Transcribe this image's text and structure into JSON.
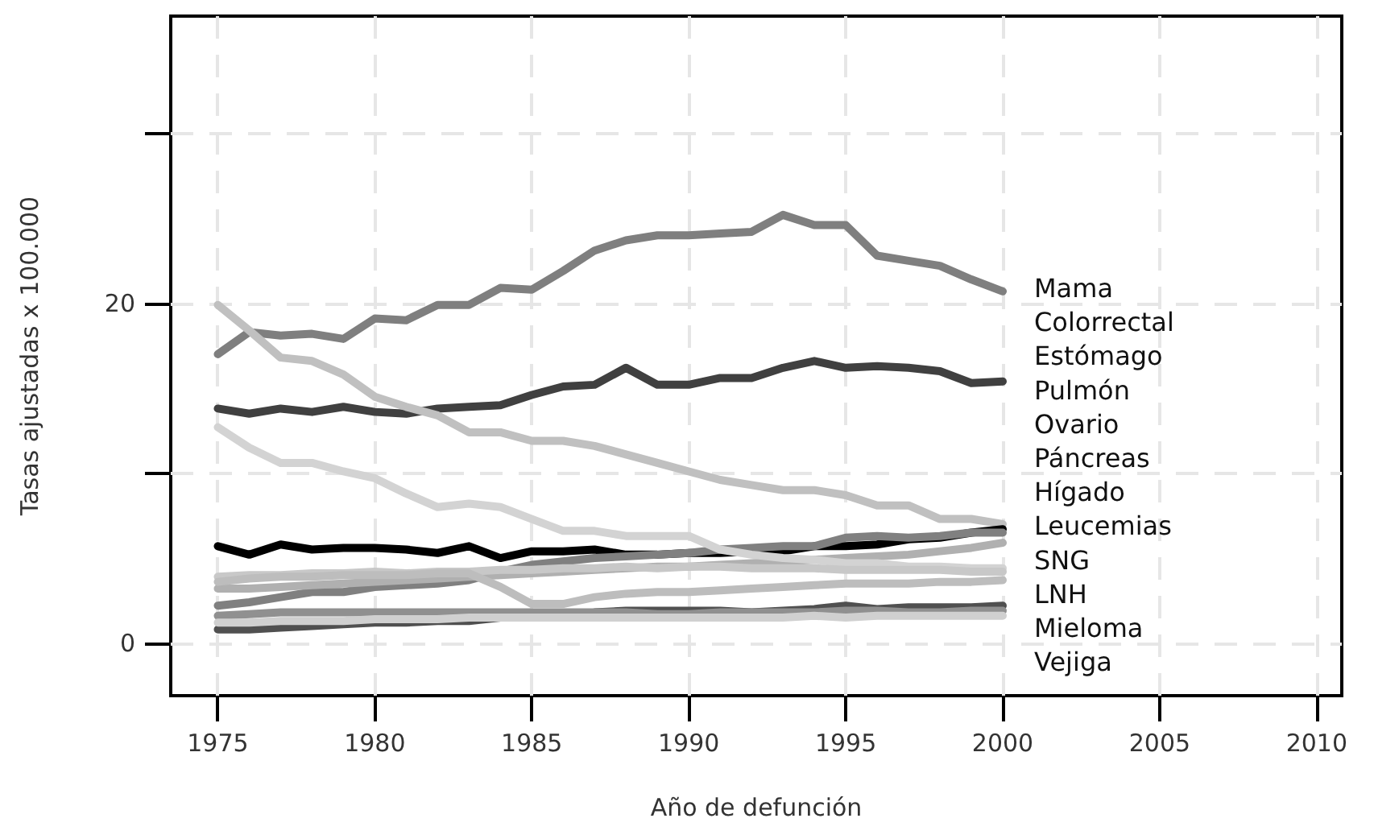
{
  "chart_data": {
    "type": "line",
    "xlabel": "Año de defunción",
    "ylabel": "Tasas ajustadas x 100.000",
    "x": [
      1975,
      1976,
      1977,
      1978,
      1979,
      1980,
      1981,
      1982,
      1983,
      1984,
      1985,
      1986,
      1987,
      1988,
      1989,
      1990,
      1991,
      1992,
      1993,
      1994,
      1995,
      1996,
      1997,
      1998,
      1999,
      2000
    ],
    "series": [
      {
        "name": "Mama",
        "color": "#7f7f7f",
        "values": [
          17.0,
          18.3,
          18.1,
          18.2,
          17.9,
          19.1,
          19.0,
          19.9,
          19.9,
          20.9,
          20.8,
          21.9,
          23.1,
          23.7,
          24.0,
          24.0,
          24.1,
          24.2,
          25.2,
          24.6,
          24.6,
          22.8,
          22.5,
          22.2,
          21.4,
          20.7
        ]
      },
      {
        "name": "Colorrectal",
        "color": "#404040",
        "values": [
          13.8,
          13.5,
          13.8,
          13.6,
          13.9,
          13.6,
          13.5,
          13.8,
          13.9,
          14.0,
          14.6,
          15.1,
          15.2,
          16.2,
          15.2,
          15.2,
          15.6,
          15.6,
          16.2,
          16.6,
          16.2,
          16.3,
          16.2,
          16.0,
          15.3,
          15.4
        ]
      },
      {
        "name": "Estómago",
        "color": "#c0c0c0",
        "values": [
          19.9,
          18.4,
          16.8,
          16.6,
          15.8,
          14.5,
          13.9,
          13.4,
          12.4,
          12.4,
          11.9,
          11.9,
          11.6,
          11.1,
          10.6,
          10.1,
          9.6,
          9.3,
          9.0,
          9.0,
          8.7,
          8.1,
          8.1,
          7.3,
          7.3,
          7.0
        ]
      },
      {
        "name": "Pulmón",
        "color": "#000000",
        "values": [
          5.7,
          5.2,
          5.8,
          5.5,
          5.6,
          5.6,
          5.5,
          5.3,
          5.7,
          5.0,
          5.4,
          5.4,
          5.5,
          5.2,
          5.2,
          5.3,
          5.3,
          5.4,
          5.4,
          5.7,
          5.7,
          5.8,
          6.1,
          6.2,
          6.5,
          6.7
        ]
      },
      {
        "name": "Ovario",
        "color": "#808080",
        "values": [
          2.2,
          2.4,
          2.7,
          3.0,
          3.0,
          3.3,
          3.4,
          3.5,
          3.7,
          4.2,
          4.6,
          4.8,
          5.0,
          5.1,
          5.2,
          5.3,
          5.5,
          5.6,
          5.7,
          5.7,
          6.2,
          6.3,
          6.2,
          6.3,
          6.5,
          6.5
        ]
      },
      {
        "name": "Páncreas",
        "color": "#b0b0b0",
        "values": [
          3.2,
          3.2,
          3.3,
          3.4,
          3.5,
          3.6,
          3.7,
          3.8,
          3.9,
          4.0,
          4.1,
          4.2,
          4.3,
          4.4,
          4.5,
          4.5,
          4.6,
          4.7,
          4.8,
          4.9,
          5.0,
          5.1,
          5.2,
          5.4,
          5.6,
          5.9
        ]
      },
      {
        "name": "Hígado",
        "color": "#d3d3d3",
        "values": [
          12.7,
          11.5,
          10.6,
          10.6,
          10.1,
          9.7,
          8.8,
          8.0,
          8.2,
          8.0,
          7.3,
          6.6,
          6.6,
          6.3,
          6.3,
          6.3,
          5.5,
          5.2,
          5.0,
          4.9,
          4.7,
          4.7,
          4.5,
          4.5,
          4.4,
          4.4
        ]
      },
      {
        "name": "Leucemias",
        "color": "#c8c8c8",
        "values": [
          3.9,
          4.0,
          4.0,
          4.1,
          4.1,
          4.2,
          4.1,
          4.2,
          4.2,
          4.3,
          4.3,
          4.4,
          4.4,
          4.5,
          4.4,
          4.5,
          4.5,
          4.4,
          4.4,
          4.4,
          4.3,
          4.3,
          4.3,
          4.3,
          4.2,
          4.2
        ]
      },
      {
        "name": "SNG",
        "color": "#bdbdbd",
        "values": [
          3.6,
          3.8,
          3.9,
          3.9,
          4.0,
          4.0,
          4.0,
          4.1,
          4.1,
          3.3,
          2.3,
          2.3,
          2.7,
          2.9,
          3.0,
          3.0,
          3.1,
          3.2,
          3.3,
          3.4,
          3.5,
          3.5,
          3.5,
          3.6,
          3.6,
          3.7
        ]
      },
      {
        "name": "LNH",
        "color": "#505050",
        "values": [
          0.8,
          0.8,
          0.9,
          1.0,
          1.1,
          1.2,
          1.2,
          1.3,
          1.3,
          1.5,
          1.6,
          1.6,
          1.8,
          1.9,
          1.9,
          1.9,
          1.9,
          1.8,
          1.9,
          2.0,
          2.2,
          2.0,
          2.1,
          2.1,
          2.1,
          2.2
        ]
      },
      {
        "name": "Mieloma",
        "color": "#909090",
        "values": [
          1.6,
          1.7,
          1.8,
          1.8,
          1.8,
          1.8,
          1.8,
          1.8,
          1.8,
          1.8,
          1.8,
          1.8,
          1.8,
          1.8,
          1.7,
          1.7,
          1.8,
          1.8,
          1.8,
          1.8,
          1.9,
          1.9,
          1.8,
          1.8,
          1.9,
          1.9
        ]
      },
      {
        "name": "Vejiga",
        "color": "#d0d0d0",
        "values": [
          1.2,
          1.2,
          1.3,
          1.3,
          1.3,
          1.4,
          1.4,
          1.4,
          1.5,
          1.5,
          1.5,
          1.5,
          1.5,
          1.5,
          1.5,
          1.5,
          1.5,
          1.5,
          1.5,
          1.6,
          1.5,
          1.6,
          1.6,
          1.6,
          1.6,
          1.6
        ]
      }
    ],
    "xlim": [
      1973.5,
      2010.8
    ],
    "xticks": [
      1975,
      1980,
      1985,
      1990,
      1995,
      2000,
      2005,
      2010
    ],
    "ylim": [
      -3.1,
      36.9
    ],
    "yticks": [
      0,
      {
        "value": 10,
        "label": null
      },
      20,
      {
        "value": 30,
        "label": null
      }
    ],
    "grid": true,
    "legend": "right",
    "marker": "none",
    "line_style": "solid"
  }
}
